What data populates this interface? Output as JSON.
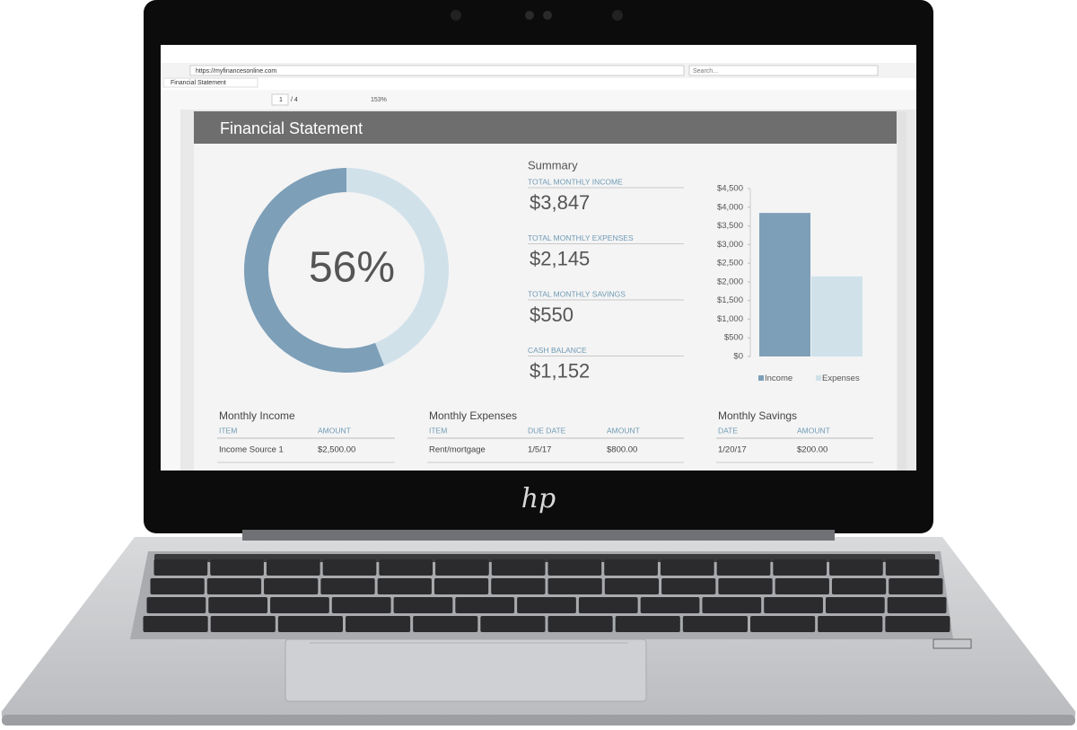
{
  "browser": {
    "url": "https://myfinancesonline.com",
    "search_placeholder": "Search...",
    "tab_title": "Financial Statement"
  },
  "viewer": {
    "page": "1",
    "page_total": "/ 4",
    "zoom": "153%"
  },
  "document": {
    "title": "Financial Statement",
    "donut": {
      "value": 56,
      "label": "56%"
    },
    "summary": {
      "heading": "Summary",
      "items": [
        {
          "label": "TOTAL MONTHLY INCOME",
          "value": "$3,847"
        },
        {
          "label": "TOTAL MONTHLY EXPENSES",
          "value": "$2,145"
        },
        {
          "label": "TOTAL MONTHLY SAVINGS",
          "value": "$550"
        },
        {
          "label": "CASH BALANCE",
          "value": "$1,152"
        }
      ]
    },
    "chart_data": {
      "type": "bar",
      "categories": [
        null
      ],
      "series": [
        {
          "name": "Income",
          "color": "#7d9fb8",
          "values": [
            3847
          ]
        },
        {
          "name": "Expenses",
          "color": "#d0e1ea",
          "values": [
            2145
          ]
        }
      ],
      "ylim": [
        0,
        4500
      ],
      "yticks": [
        {
          "value": 0,
          "label": "$0"
        },
        {
          "value": 500,
          "label": "$500"
        },
        {
          "value": 1000,
          "label": "$1,000"
        },
        {
          "value": 1500,
          "label": "$1,500"
        },
        {
          "value": 2000,
          "label": "$2,000"
        },
        {
          "value": 2500,
          "label": "$2,500"
        },
        {
          "value": 3000,
          "label": "$3,000"
        },
        {
          "value": 3500,
          "label": "$3,500"
        },
        {
          "value": 4000,
          "label": "$4,000"
        },
        {
          "value": 4500,
          "label": "$4,500"
        }
      ]
    },
    "tables": [
      {
        "title": "Monthly Income",
        "columns": [
          "ITEM",
          "AMOUNT"
        ],
        "rows": [
          [
            "Income Source 1",
            "$2,500.00"
          ]
        ]
      },
      {
        "title": "Monthly Expenses",
        "columns": [
          "ITEM",
          "DUE DATE",
          "AMOUNT"
        ],
        "rows": [
          [
            "Rent/mortgage",
            "1/5/17",
            "$800.00"
          ]
        ]
      },
      {
        "title": "Monthly Savings",
        "columns": [
          "DATE",
          "AMOUNT"
        ],
        "rows": [
          [
            "1/20/17",
            "$200.00"
          ]
        ]
      }
    ]
  },
  "brand": "hp"
}
